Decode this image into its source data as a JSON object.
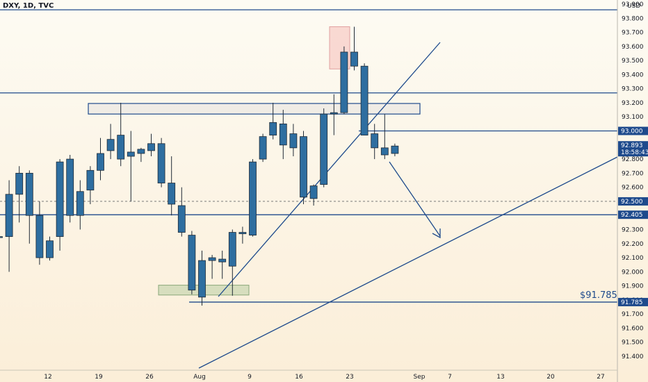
{
  "header": {
    "title": "DXY, 1D, TVC",
    "currency": "USD"
  },
  "colors": {
    "line": "#1e4a8c",
    "candle": "#2e6ea0",
    "tag": "#1e4a8c"
  },
  "chart_data": {
    "type": "candlestick",
    "symbol": "DXY",
    "timeframe": "1D",
    "y_ticks": [
      "91.400",
      "91.500",
      "91.600",
      "91.700",
      "91.800",
      "91.900",
      "92.000",
      "92.100",
      "92.200",
      "92.300",
      "92.400",
      "92.500",
      "92.600",
      "92.700",
      "92.800",
      "92.900",
      "93.000",
      "93.100",
      "93.200",
      "93.300",
      "93.400",
      "93.500",
      "93.600",
      "93.700",
      "93.800",
      "93.900"
    ],
    "x_ticks": [
      "12",
      "19",
      "26",
      "Aug",
      "9",
      "16",
      "23",
      "Sep",
      "7",
      "13",
      "20",
      "27"
    ],
    "price_tags": [
      {
        "label": "93.000",
        "value": 93.0
      },
      {
        "label": "92.893",
        "value": 92.893,
        "sub": "18:58:43"
      },
      {
        "label": "92.500",
        "value": 92.5,
        "dashed": true
      },
      {
        "label": "92.405",
        "value": 92.405
      },
      {
        "label": "91.785",
        "value": 91.785
      }
    ],
    "annotation": "$91.785",
    "candles": [
      {
        "o": 92.25,
        "h": 92.25,
        "l": 92.25,
        "c": 92.25
      },
      {
        "o": 92.25,
        "h": 92.65,
        "l": 92.0,
        "c": 92.55
      },
      {
        "o": 92.55,
        "h": 92.75,
        "l": 92.35,
        "c": 92.7
      },
      {
        "o": 92.7,
        "h": 92.72,
        "l": 92.2,
        "c": 92.4
      },
      {
        "o": 92.4,
        "h": 92.5,
        "l": 92.05,
        "c": 92.1
      },
      {
        "o": 92.1,
        "h": 92.25,
        "l": 92.08,
        "c": 92.22
      },
      {
        "o": 92.25,
        "h": 92.8,
        "l": 92.15,
        "c": 92.78
      },
      {
        "o": 92.8,
        "h": 92.83,
        "l": 92.35,
        "c": 92.4
      },
      {
        "o": 92.4,
        "h": 92.65,
        "l": 92.3,
        "c": 92.57
      },
      {
        "o": 92.58,
        "h": 92.75,
        "l": 92.48,
        "c": 92.72
      },
      {
        "o": 92.72,
        "h": 92.95,
        "l": 92.65,
        "c": 92.84
      },
      {
        "o": 92.86,
        "h": 93.05,
        "l": 92.8,
        "c": 92.94
      },
      {
        "o": 92.97,
        "h": 93.2,
        "l": 92.75,
        "c": 92.8
      },
      {
        "o": 92.82,
        "h": 93.0,
        "l": 92.5,
        "c": 92.85
      },
      {
        "o": 92.84,
        "h": 92.88,
        "l": 92.78,
        "c": 92.87
      },
      {
        "o": 92.86,
        "h": 92.98,
        "l": 92.82,
        "c": 92.91
      },
      {
        "o": 92.91,
        "h": 92.95,
        "l": 92.6,
        "c": 92.63
      },
      {
        "o": 92.63,
        "h": 92.82,
        "l": 92.4,
        "c": 92.48
      },
      {
        "o": 92.47,
        "h": 92.6,
        "l": 92.25,
        "c": 92.28
      },
      {
        "o": 92.26,
        "h": 92.29,
        "l": 91.84,
        "c": 91.87
      },
      {
        "o": 91.82,
        "h": 92.15,
        "l": 91.76,
        "c": 92.08
      },
      {
        "o": 92.08,
        "h": 92.12,
        "l": 91.95,
        "c": 92.1
      },
      {
        "o": 92.07,
        "h": 92.15,
        "l": 91.95,
        "c": 92.09
      },
      {
        "o": 92.04,
        "h": 92.3,
        "l": 91.83,
        "c": 92.28
      },
      {
        "o": 92.27,
        "h": 92.32,
        "l": 92.2,
        "c": 92.28
      },
      {
        "o": 92.26,
        "h": 92.8,
        "l": 92.25,
        "c": 92.78
      },
      {
        "o": 92.8,
        "h": 92.98,
        "l": 92.78,
        "c": 92.96
      },
      {
        "o": 92.97,
        "h": 93.2,
        "l": 92.94,
        "c": 93.06
      },
      {
        "o": 93.05,
        "h": 93.15,
        "l": 92.8,
        "c": 92.9
      },
      {
        "o": 92.98,
        "h": 93.05,
        "l": 92.82,
        "c": 92.88
      },
      {
        "o": 92.96,
        "h": 93.0,
        "l": 92.48,
        "c": 92.53
      },
      {
        "o": 92.52,
        "h": 92.62,
        "l": 92.47,
        "c": 92.61
      },
      {
        "o": 92.62,
        "h": 93.16,
        "l": 92.6,
        "c": 93.12
      },
      {
        "o": 93.12,
        "h": 93.26,
        "l": 92.97,
        "c": 93.13
      },
      {
        "o": 93.13,
        "h": 93.6,
        "l": 93.12,
        "c": 93.56
      },
      {
        "o": 93.56,
        "h": 93.74,
        "l": 93.43,
        "c": 93.46
      },
      {
        "o": 93.46,
        "h": 93.48,
        "l": 92.97,
        "c": 92.97
      },
      {
        "o": 92.98,
        "h": 93.05,
        "l": 92.8,
        "c": 92.88
      },
      {
        "o": 92.88,
        "h": 93.12,
        "l": 92.8,
        "c": 92.83
      },
      {
        "o": 92.84,
        "h": 92.91,
        "l": 92.82,
        "c": 92.893
      }
    ]
  }
}
